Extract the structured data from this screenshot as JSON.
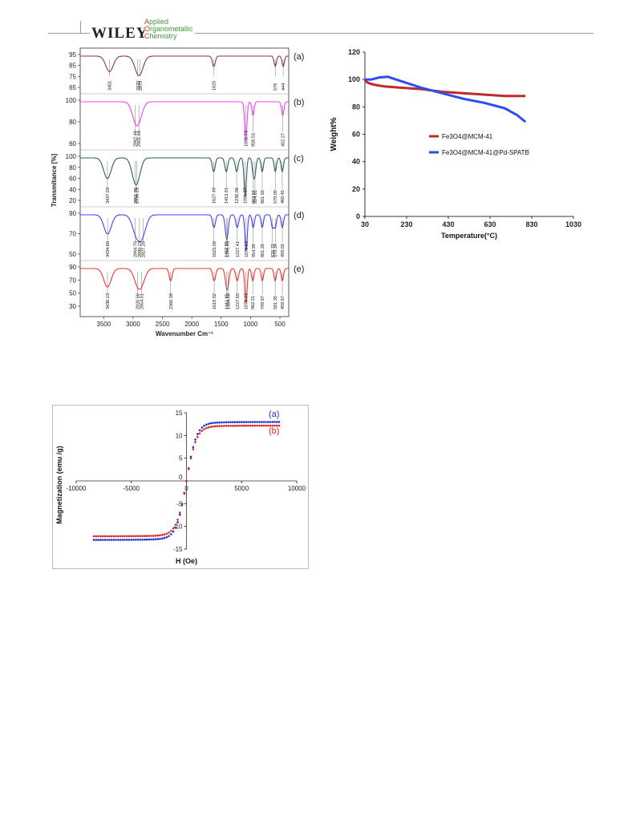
{
  "header": {
    "publisher": "WILEY",
    "journal_lines": [
      {
        "initial": "A",
        "rest": "pplied"
      },
      {
        "initial": "O",
        "rest": "rganometallic"
      },
      {
        "initial": "C",
        "rest": "hemistry"
      }
    ]
  },
  "chart_data": [
    {
      "type": "line",
      "title": "",
      "xlabel": "Wavenumber Cm⁻¹",
      "ylabel": "Transmitance [%]",
      "x_ticks": [
        3500,
        3000,
        2500,
        2000,
        1500,
        1000,
        500
      ],
      "panels": [
        {
          "name": "(a)",
          "color": "#8b3a3a",
          "y_ticks": [
            65,
            75,
            85,
            95
          ],
          "y_tick_labels": [
            "65",
            "75",
            "85",
            "95"
          ],
          "peaks": [
            "3401",
            "2920",
            "2879",
            "1625",
            "579",
            "444"
          ]
        },
        {
          "name": "(b)",
          "color": "#ee44ee",
          "y_ticks": [
            60,
            80,
            100
          ],
          "y_tick_labels": [
            "60",
            "80",
            "100"
          ],
          "peaks": [
            "2962.46",
            "2901.64",
            "1081.73",
            "958.53",
            "452.27"
          ]
        },
        {
          "name": "(c)",
          "color": "#2f5f5f",
          "y_ticks": [
            20,
            40,
            60,
            80,
            100
          ],
          "y_tick_labels": [
            "20",
            "40",
            "60",
            "80",
            "100"
          ],
          "peaks": [
            "3437.03",
            "2961.06",
            "2936.25",
            "1627.49",
            "1413.91",
            "1236.06",
            "1091.27",
            "953.87",
            "924.03",
            "801.50",
            "579.09",
            "460.45"
          ]
        },
        {
          "name": "(d)",
          "color": "#4444ee",
          "y_ticks": [
            50,
            70,
            90
          ],
          "y_tick_labels": [
            "50",
            "70",
            "90"
          ],
          "peaks": [
            "3434.60",
            "2964.75",
            "2890.13",
            "2827.20",
            "1623.59",
            "1412.95",
            "1396.45",
            "1227.41",
            "1076.93",
            "954.99",
            "801.28",
            "626.70",
            "579.34",
            "459.02"
          ]
        },
        {
          "name": "(e)",
          "color": "#ee3333",
          "y_ticks": [
            30,
            50,
            70,
            90
          ],
          "y_tick_labels": [
            "30",
            "50",
            "70",
            "90"
          ],
          "peaks": [
            "3436.13",
            "2926.66",
            "2854.01",
            "2360.39",
            "1619.92",
            "1411.95",
            "1384.60",
            "1227.65",
            "1078.43",
            "962.21",
            "799.87",
            "581.35",
            "459.67"
          ]
        }
      ]
    },
    {
      "type": "line",
      "title": "",
      "xlabel": "Temperature(°C)",
      "ylabel": "Weight%",
      "x_ticks": [
        30,
        230,
        430,
        630,
        830,
        1030
      ],
      "y_ticks": [
        0,
        20,
        40,
        60,
        80,
        100,
        120
      ],
      "xlim": [
        30,
        1030
      ],
      "ylim": [
        0,
        120
      ],
      "legend_position": "center-right",
      "series": [
        {
          "name": "Fe3O4@MCM-41",
          "color": "#c0282e",
          "x": [
            30,
            40,
            55,
            80,
            120,
            200,
            300,
            400,
            500,
            600,
            700,
            800
          ],
          "y": [
            100,
            98,
            97,
            96,
            95,
            94,
            93,
            91,
            90,
            89,
            88,
            88
          ]
        },
        {
          "name": "Fe3O4@MCM-41@Pd-SPATB",
          "color": "#2b4ef0",
          "x": [
            30,
            60,
            100,
            140,
            200,
            300,
            400,
            500,
            600,
            700,
            760,
            800
          ],
          "y": [
            100,
            100,
            101.5,
            102,
            99,
            94,
            90,
            86,
            83,
            79,
            74,
            69
          ]
        }
      ]
    },
    {
      "type": "scatter",
      "title": "",
      "xlabel": "H (Oe)",
      "ylabel": "Magnetization (emu /g)",
      "x_ticks": [
        -10000,
        -5000,
        0,
        5000,
        10000
      ],
      "y_ticks": [
        -15,
        -10,
        -5,
        0,
        5,
        10,
        15
      ],
      "xlim": [
        -10000,
        10000
      ],
      "ylim": [
        -15,
        15
      ],
      "series": [
        {
          "name": "(a)",
          "color": "#1f2fcc",
          "saturation": 13.0,
          "H_min": -8400,
          "H_max": 8400
        },
        {
          "name": "(b)",
          "color": "#dd2222",
          "saturation": 12.2,
          "H_min": -8400,
          "H_max": 8400
        }
      ]
    }
  ]
}
